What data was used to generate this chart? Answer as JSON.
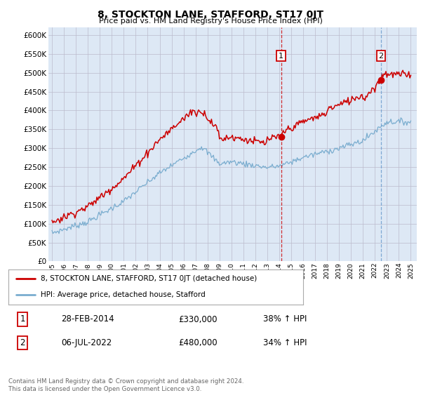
{
  "title": "8, STOCKTON LANE, STAFFORD, ST17 0JT",
  "subtitle": "Price paid vs. HM Land Registry's House Price Index (HPI)",
  "yticks": [
    0,
    50000,
    100000,
    150000,
    200000,
    250000,
    300000,
    350000,
    400000,
    450000,
    500000,
    550000,
    600000
  ],
  "ylim": [
    0,
    620000
  ],
  "xlim_start": 1994.7,
  "xlim_end": 2025.5,
  "marker1_x": 2014.16,
  "marker1_y": 330000,
  "marker2_x": 2022.5,
  "marker2_y": 480000,
  "vline1_x": 2014.16,
  "vline1_color": "#cc0000",
  "vline2_x": 2022.5,
  "vline2_color": "#6699cc",
  "legend_line1": "8, STOCKTON LANE, STAFFORD, ST17 0JT (detached house)",
  "legend_line2": "HPI: Average price, detached house, Stafford",
  "table_row1_num": "1",
  "table_row1_date": "28-FEB-2014",
  "table_row1_price": "£330,000",
  "table_row1_hpi": "38% ↑ HPI",
  "table_row2_num": "2",
  "table_row2_date": "06-JUL-2022",
  "table_row2_price": "£480,000",
  "table_row2_hpi": "34% ↑ HPI",
  "footer": "Contains HM Land Registry data © Crown copyright and database right 2024.\nThis data is licensed under the Open Government Licence v3.0.",
  "red_color": "#cc0000",
  "blue_color": "#7aadcf",
  "bg_color": "#dde8f5",
  "grid_color": "#bbbbcc",
  "title_fontsize": 10,
  "subtitle_fontsize": 8
}
